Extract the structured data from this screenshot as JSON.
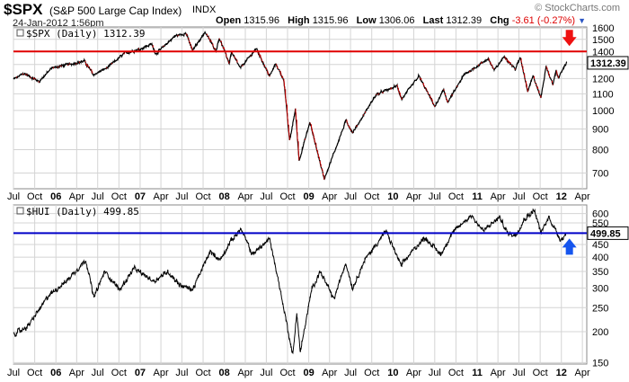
{
  "header": {
    "symbol": "$SPX",
    "name": "(S&P 500 Large Cap Index)",
    "exchange": "INDX",
    "date": "24-Jan-2012 1:56pm",
    "brand": "© StockCharts.com",
    "quote": {
      "open_label": "Open",
      "open": "1315.96",
      "high_label": "High",
      "high": "1315.96",
      "low_label": "Low",
      "low": "1306.06",
      "last_label": "Last",
      "last": "1312.39",
      "chg_label": "Chg",
      "chg": "-3.61 (-0.27%)"
    }
  },
  "colors": {
    "spx_line": "#000000",
    "spx_down": "#cc0000",
    "spx_hline": "#e00000",
    "hui_hline": "#0000c8",
    "arrow_red": "#ee1111",
    "arrow_blue": "#1555ee",
    "grid": "#d4d4d4",
    "frame": "#888888"
  },
  "chart_data": [
    {
      "type": "line",
      "panel_label": "$SPX (Daily) 1312.39",
      "last_value_label": "1312.39",
      "y_scale": "log",
      "ylim": [
        640,
        1610
      ],
      "y_ticks": [
        700,
        800,
        900,
        1000,
        1100,
        1200,
        1300,
        1400,
        1500,
        1600
      ],
      "horizontal_line": 1400,
      "arrow": "down",
      "x_ticks": [
        "Jul",
        "Oct",
        "06",
        "Apr",
        "Jul",
        "Oct",
        "07",
        "Apr",
        "Jul",
        "Oct",
        "08",
        "Apr",
        "Jul",
        "Oct",
        "09",
        "Apr",
        "Jul",
        "Oct",
        "10",
        "Apr",
        "Jul",
        "Oct",
        "11",
        "Apr",
        "Jul",
        "Oct",
        "12",
        "Apr"
      ],
      "anchors": [
        [
          "2005-07-01",
          1195
        ],
        [
          "2005-08-15",
          1235
        ],
        [
          "2005-10-20",
          1180
        ],
        [
          "2005-12-15",
          1275
        ],
        [
          "2006-05-05",
          1325
        ],
        [
          "2006-06-13",
          1225
        ],
        [
          "2006-08-15",
          1280
        ],
        [
          "2006-10-25",
          1385
        ],
        [
          "2006-12-29",
          1418
        ],
        [
          "2007-02-20",
          1460
        ],
        [
          "2007-03-10",
          1380
        ],
        [
          "2007-06-01",
          1530
        ],
        [
          "2007-07-19",
          1553
        ],
        [
          "2007-08-16",
          1406
        ],
        [
          "2007-10-09",
          1565
        ],
        [
          "2007-11-26",
          1405
        ],
        [
          "2007-12-10",
          1515
        ],
        [
          "2008-01-22",
          1310
        ],
        [
          "2008-02-01",
          1395
        ],
        [
          "2008-03-10",
          1272
        ],
        [
          "2008-05-19",
          1425
        ],
        [
          "2008-07-15",
          1215
        ],
        [
          "2008-08-11",
          1305
        ],
        [
          "2008-09-15",
          1190
        ],
        [
          "2008-10-10",
          840
        ],
        [
          "2008-11-04",
          1005
        ],
        [
          "2008-11-20",
          752
        ],
        [
          "2009-01-06",
          935
        ],
        [
          "2009-03-09",
          677
        ],
        [
          "2009-06-12",
          945
        ],
        [
          "2009-07-10",
          880
        ],
        [
          "2009-10-20",
          1095
        ],
        [
          "2010-01-19",
          1150
        ],
        [
          "2010-02-08",
          1065
        ],
        [
          "2010-04-23",
          1217
        ],
        [
          "2010-07-02",
          1022
        ],
        [
          "2010-08-09",
          1125
        ],
        [
          "2010-08-27",
          1047
        ],
        [
          "2010-11-05",
          1225
        ],
        [
          "2011-02-18",
          1343
        ],
        [
          "2011-03-16",
          1256
        ],
        [
          "2011-04-29",
          1363
        ],
        [
          "2011-06-15",
          1265
        ],
        [
          "2011-07-07",
          1353
        ],
        [
          "2011-08-08",
          1119
        ],
        [
          "2011-08-31",
          1218
        ],
        [
          "2011-10-04",
          1075
        ],
        [
          "2011-10-27",
          1285
        ],
        [
          "2011-11-25",
          1158
        ],
        [
          "2011-12-09",
          1255
        ],
        [
          "2011-12-19",
          1205
        ],
        [
          "2012-01-24",
          1312
        ]
      ]
    },
    {
      "type": "line",
      "panel_label": "$HUI (Daily) 499.85",
      "last_value_label": "499.85",
      "y_scale": "log",
      "ylim": [
        148,
        650
      ],
      "y_ticks": [
        150,
        200,
        250,
        300,
        350,
        400,
        450,
        500,
        550,
        600
      ],
      "horizontal_line": 500,
      "arrow": "up",
      "x_ticks": [
        "Jul",
        "Oct",
        "06",
        "Apr",
        "Jul",
        "Oct",
        "07",
        "Apr",
        "Jul",
        "Oct",
        "08",
        "Apr",
        "Jul",
        "Oct",
        "09",
        "Apr",
        "Jul",
        "Oct",
        "10",
        "Apr",
        "Jul",
        "Oct",
        "11",
        "Apr",
        "Jul",
        "Oct",
        "12",
        "Apr"
      ],
      "anchors": [
        [
          "2005-07-01",
          195
        ],
        [
          "2005-09-01",
          210
        ],
        [
          "2005-12-01",
          280
        ],
        [
          "2006-02-15",
          320
        ],
        [
          "2006-05-11",
          390
        ],
        [
          "2006-06-14",
          275
        ],
        [
          "2006-08-01",
          350
        ],
        [
          "2006-10-04",
          295
        ],
        [
          "2006-12-05",
          360
        ],
        [
          "2007-03-01",
          320
        ],
        [
          "2007-05-01",
          350
        ],
        [
          "2007-06-20",
          310
        ],
        [
          "2007-08-16",
          295
        ],
        [
          "2007-10-31",
          420
        ],
        [
          "2007-12-15",
          390
        ],
        [
          "2008-01-25",
          460
        ],
        [
          "2008-03-13",
          520
        ],
        [
          "2008-05-01",
          410
        ],
        [
          "2008-07-15",
          475
        ],
        [
          "2008-08-20",
          330
        ],
        [
          "2008-10-24",
          160
        ],
        [
          "2008-11-10",
          240
        ],
        [
          "2008-11-25",
          165
        ],
        [
          "2009-01-15",
          300
        ],
        [
          "2009-02-20",
          350
        ],
        [
          "2009-04-20",
          270
        ],
        [
          "2009-06-10",
          380
        ],
        [
          "2009-07-10",
          300
        ],
        [
          "2009-09-01",
          390
        ],
        [
          "2009-12-02",
          510
        ],
        [
          "2010-02-05",
          370
        ],
        [
          "2010-04-01",
          430
        ],
        [
          "2010-05-20",
          480
        ],
        [
          "2010-07-27",
          410
        ],
        [
          "2010-09-15",
          500
        ],
        [
          "2010-11-09",
          560
        ],
        [
          "2010-12-07",
          590
        ],
        [
          "2011-01-27",
          510
        ],
        [
          "2011-04-08",
          580
        ],
        [
          "2011-05-13",
          500
        ],
        [
          "2011-06-15",
          490
        ],
        [
          "2011-07-25",
          570
        ],
        [
          "2011-09-06",
          620
        ],
        [
          "2011-10-04",
          500
        ],
        [
          "2011-11-08",
          580
        ],
        [
          "2011-12-29",
          470
        ],
        [
          "2012-01-24",
          500
        ]
      ]
    }
  ]
}
